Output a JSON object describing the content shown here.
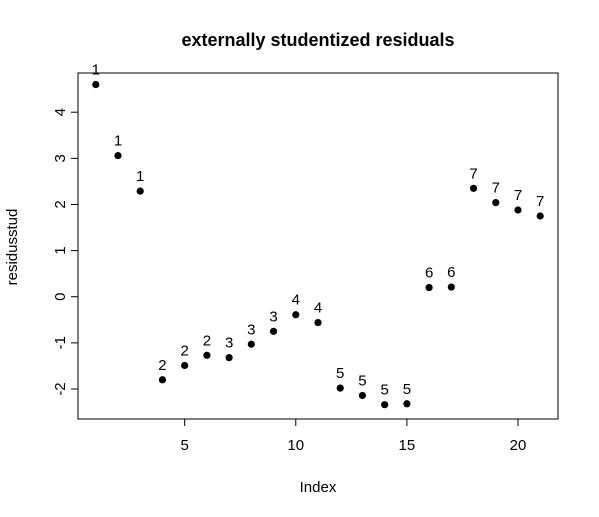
{
  "chart_data": {
    "type": "scatter",
    "title": "externally studentized residuals",
    "xlabel": "Index",
    "ylabel": "residusstud",
    "xlim": [
      0.2,
      21.8
    ],
    "ylim": [
      -2.65,
      4.85
    ],
    "xticks": [
      5,
      10,
      15,
      20
    ],
    "yticks": [
      -2,
      -1,
      0,
      1,
      2,
      3,
      4
    ],
    "grid": false,
    "legend": "none",
    "point_color": "#000000",
    "points": [
      {
        "x": 1,
        "y": 4.6,
        "label": "1"
      },
      {
        "x": 2,
        "y": 3.06,
        "label": "1"
      },
      {
        "x": 3,
        "y": 2.29,
        "label": "1"
      },
      {
        "x": 4,
        "y": -1.8,
        "label": "2"
      },
      {
        "x": 5,
        "y": -1.49,
        "label": "2"
      },
      {
        "x": 6,
        "y": -1.27,
        "label": "2"
      },
      {
        "x": 7,
        "y": -1.32,
        "label": "3"
      },
      {
        "x": 8,
        "y": -1.03,
        "label": "3"
      },
      {
        "x": 9,
        "y": -0.75,
        "label": "3"
      },
      {
        "x": 10,
        "y": -0.39,
        "label": "4"
      },
      {
        "x": 11,
        "y": -0.56,
        "label": "4"
      },
      {
        "x": 12,
        "y": -1.98,
        "label": "5"
      },
      {
        "x": 13,
        "y": -2.14,
        "label": "5"
      },
      {
        "x": 14,
        "y": -2.34,
        "label": "5"
      },
      {
        "x": 15,
        "y": -2.32,
        "label": "5"
      },
      {
        "x": 16,
        "y": 0.2,
        "label": "6"
      },
      {
        "x": 17,
        "y": 0.21,
        "label": "6"
      },
      {
        "x": 18,
        "y": 2.35,
        "label": "7"
      },
      {
        "x": 19,
        "y": 2.04,
        "label": "7"
      },
      {
        "x": 20,
        "y": 1.88,
        "label": "7"
      },
      {
        "x": 21,
        "y": 1.75,
        "label": "7"
      }
    ]
  }
}
